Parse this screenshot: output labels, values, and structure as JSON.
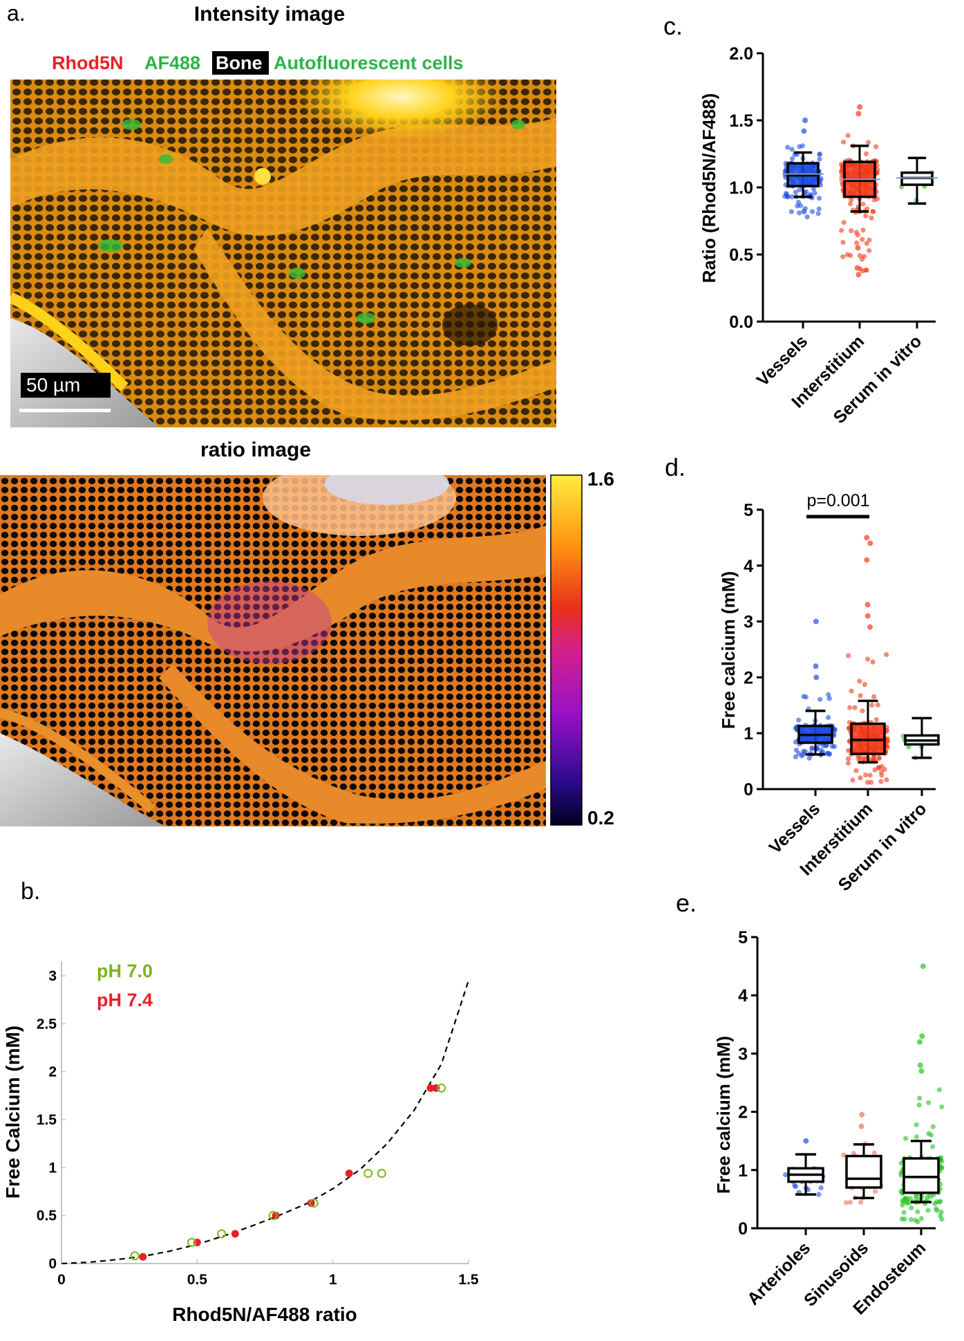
{
  "colors": {
    "red": "#e8202a",
    "green": "#2db34a",
    "lime": "#7ab51d",
    "blue": "#1f4fe0",
    "box_red": "#f23a1a",
    "bright_green": "#27c21f",
    "salmon": "#f2705f",
    "black": "#000000"
  },
  "panel_a": {
    "letter": "a.",
    "intensity_title": "Intensity image",
    "legend": {
      "rhod": "Rhod5N",
      "af488": "AF488",
      "bone": "Bone",
      "auto": "Autofluorescent cells"
    },
    "scale_bar": "50 µm",
    "ratio_title": "ratio image",
    "colorbar_max": "1.6",
    "colorbar_min": "0.2"
  },
  "panel_b": {
    "letter": "b."
  },
  "panel_c": {
    "letter": "c."
  },
  "panel_d": {
    "letter": "d.",
    "pvalue": "p=0.001"
  },
  "panel_e": {
    "letter": "e."
  },
  "chart_data": [
    {
      "id": "b",
      "type": "scatter",
      "xlabel": "Rhod5N/AF488 ratio",
      "ylabel": "Free Calcium (mM)",
      "xlim": [
        0,
        1.5
      ],
      "ylim": [
        0,
        3
      ],
      "xticks": [
        "0",
        "0.5",
        "1",
        "1.5"
      ],
      "yticks": [
        "0",
        "0.5",
        "1",
        "1.5",
        "2",
        "2.5",
        "3"
      ],
      "legend": [
        "pH 7.0",
        "pH 7.4"
      ],
      "series": [
        {
          "name": "pH 7.0",
          "marker": "open circle",
          "points": [
            [
              0.27,
              0.08
            ],
            [
              0.48,
              0.22
            ],
            [
              0.59,
              0.31
            ],
            [
              0.78,
              0.5
            ],
            [
              0.93,
              0.63
            ],
            [
              1.13,
              0.94
            ],
            [
              1.18,
              0.94
            ],
            [
              1.4,
              1.83
            ]
          ]
        },
        {
          "name": "pH 7.4",
          "marker": "filled circle",
          "points": [
            [
              0.3,
              0.07
            ],
            [
              0.5,
              0.22
            ],
            [
              0.64,
              0.31
            ],
            [
              0.79,
              0.5
            ],
            [
              0.92,
              0.63
            ],
            [
              1.06,
              0.94
            ],
            [
              1.36,
              1.83
            ],
            [
              1.38,
              1.83
            ]
          ]
        },
        {
          "name": "fit",
          "style": "dashed",
          "points": [
            [
              0.0,
              0.0
            ],
            [
              0.1,
              0.013
            ],
            [
              0.2,
              0.04
            ],
            [
              0.3,
              0.075
            ],
            [
              0.4,
              0.13
            ],
            [
              0.5,
              0.2
            ],
            [
              0.6,
              0.29
            ],
            [
              0.7,
              0.39
            ],
            [
              0.8,
              0.5
            ],
            [
              0.9,
              0.62
            ],
            [
              1.0,
              0.78
            ],
            [
              1.1,
              0.98
            ],
            [
              1.2,
              1.25
            ],
            [
              1.3,
              1.6
            ],
            [
              1.4,
              2.08
            ],
            [
              1.5,
              2.95
            ]
          ]
        }
      ]
    },
    {
      "id": "c",
      "type": "box",
      "ylabel": "Ratio (Rhod5N/AF488)",
      "ylim": [
        0,
        2
      ],
      "yticks": [
        "0.0",
        "0.5",
        "1.0",
        "1.5",
        "2.0"
      ],
      "categories": [
        "Vessels",
        "Interstitium",
        "Serum in vitro"
      ],
      "boxes": [
        {
          "min": 0.93,
          "q1": 1.01,
          "median": 1.09,
          "q3": 1.18,
          "max": 1.26,
          "mean": 1.1
        },
        {
          "min": 0.82,
          "q1": 0.93,
          "median": 1.05,
          "q3": 1.19,
          "max": 1.31,
          "mean": 1.06
        },
        {
          "min": 0.88,
          "q1": 1.02,
          "median": 1.07,
          "q3": 1.11,
          "max": 1.22,
          "mean": 1.07
        }
      ]
    },
    {
      "id": "d",
      "type": "box",
      "ylabel": "Free calcium (mM)",
      "ylim": [
        0,
        5
      ],
      "yticks": [
        "0",
        "1",
        "2",
        "3",
        "4",
        "5"
      ],
      "categories": [
        "Vessels",
        "Interstitium",
        "Serum in vitro"
      ],
      "boxes": [
        {
          "min": 0.62,
          "q1": 0.83,
          "median": 0.97,
          "q3": 1.13,
          "max": 1.4
        },
        {
          "min": 0.48,
          "q1": 0.63,
          "median": 0.88,
          "q3": 1.17,
          "max": 1.58
        },
        {
          "min": 0.56,
          "q1": 0.8,
          "median": 0.87,
          "q3": 0.96,
          "max": 1.27
        }
      ],
      "significance": {
        "between": [
          "Vessels",
          "Interstitium"
        ],
        "label": "p=0.001"
      }
    },
    {
      "id": "e",
      "type": "box",
      "ylabel": "Free calcium (mM)",
      "ylim": [
        0,
        5
      ],
      "yticks": [
        "0",
        "1",
        "2",
        "3",
        "4",
        "5"
      ],
      "categories": [
        "Arterioles",
        "Sinusoids",
        "Endosteum"
      ],
      "boxes": [
        {
          "min": 0.58,
          "q1": 0.8,
          "median": 0.92,
          "q3": 1.03,
          "max": 1.27
        },
        {
          "min": 0.52,
          "q1": 0.7,
          "median": 0.85,
          "q3": 1.24,
          "max": 1.44
        },
        {
          "min": 0.45,
          "q1": 0.61,
          "median": 0.88,
          "q3": 1.2,
          "max": 1.5
        }
      ]
    }
  ]
}
